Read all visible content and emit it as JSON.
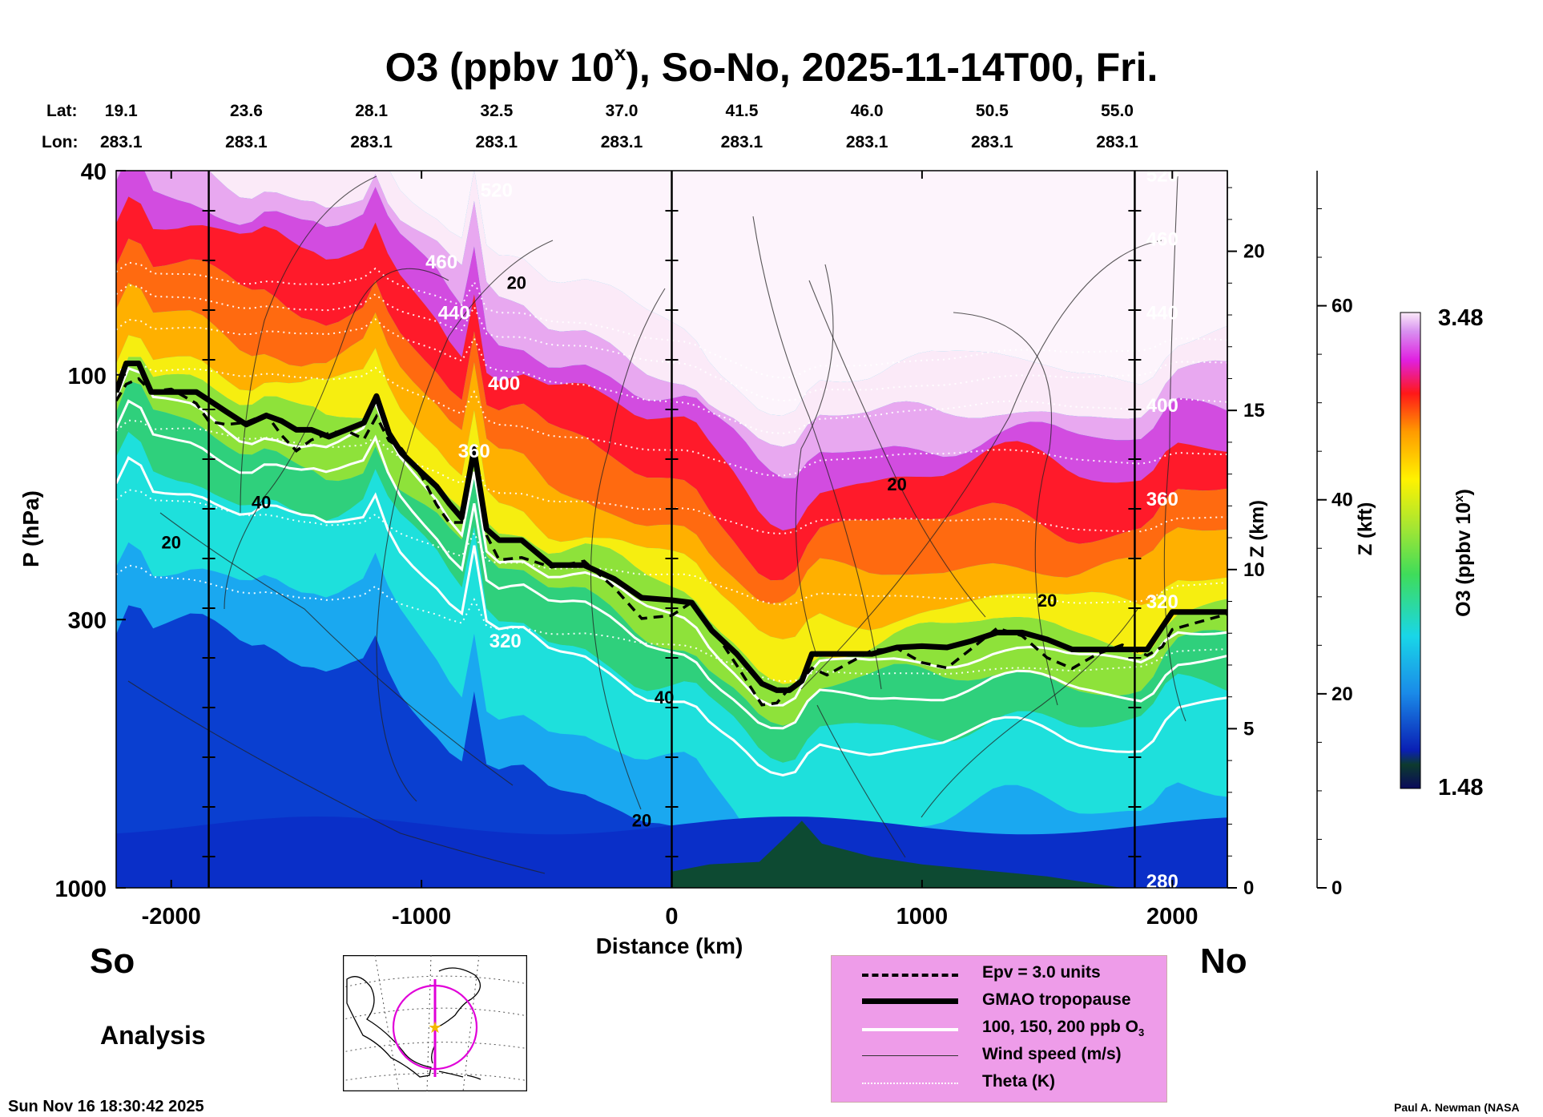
{
  "title": {
    "main": "O3 (ppbv 10",
    "sup": "x",
    "rest": "), So-No, 2025-11-14T00, Fri."
  },
  "header_rows": {
    "lat_label": "Lat:",
    "lon_label": "Lon:"
  },
  "chart_data": {
    "type": "heatmap",
    "title": "O3 (ppbv 10^x), So-No, 2025-11-14T00, Fri.",
    "xlabel": "Distance (km)",
    "ylabel": "P (hPa)",
    "xlim": [
      -2220,
      2220
    ],
    "ylim_pressure": [
      1000,
      40
    ],
    "x_ticks": [
      -2000,
      -1000,
      0,
      1000,
      2000
    ],
    "x_tick_labels": [
      "-2000",
      "-1000",
      "0",
      "1000",
      "2000"
    ],
    "y_ticks": [
      40,
      100,
      300,
      1000
    ],
    "y_tick_labels": [
      "40",
      "100",
      "300",
      "1000"
    ],
    "z_km_axis": {
      "label": "Z (km)",
      "ticks": [
        0,
        5,
        10,
        15,
        20
      ],
      "labels": [
        "0",
        "5",
        "10",
        "15",
        "20"
      ]
    },
    "z_kft_axis": {
      "label": "Z (kft)",
      "ticks": [
        0,
        20,
        40,
        60
      ],
      "labels": [
        "0",
        "20",
        "40",
        "60"
      ]
    },
    "colorbar": {
      "label_main": "O3 (ppbv 10",
      "label_sup": "x",
      "label_rest": ")",
      "min": 1.48,
      "max": 3.48,
      "min_label": "1.48",
      "max_label": "3.48"
    },
    "lat_lon_points": [
      {
        "x": -2200,
        "lat": "19.1",
        "lon": "283.1"
      },
      {
        "x": -1700,
        "lat": "23.6",
        "lon": "283.1"
      },
      {
        "x": -1200,
        "lat": "28.1",
        "lon": "283.1"
      },
      {
        "x": -700,
        "lat": "32.5",
        "lon": "283.1"
      },
      {
        "x": -200,
        "lat": "37.0",
        "lon": "283.1"
      },
      {
        "x": 280,
        "lat": "41.5",
        "lon": "283.1"
      },
      {
        "x": 780,
        "lat": "46.0",
        "lon": "283.1"
      },
      {
        "x": 1280,
        "lat": "50.5",
        "lon": "283.1"
      },
      {
        "x": 1780,
        "lat": "55.0",
        "lon": "283.1"
      }
    ],
    "vertical_markers_km": [
      -1850,
      0,
      1850
    ],
    "tropopause_hpa": {
      "x": [
        -2220,
        -2180,
        -2130,
        -2080,
        -2000,
        -1900,
        -1850,
        -1780,
        -1700,
        -1620,
        -1560,
        -1500,
        -1440,
        -1370,
        -1300,
        -1230,
        -1180,
        -1130,
        -1080,
        -1000,
        -940,
        -890,
        -840,
        -790,
        -740,
        -690,
        -600,
        -480,
        -350,
        -230,
        -120,
        0,
        80,
        160,
        260,
        360,
        420,
        470,
        520,
        560,
        620,
        700,
        800,
        900,
        1000,
        1100,
        1200,
        1300,
        1400,
        1500,
        1600,
        1700,
        1800,
        1900,
        1960,
        2000,
        2220
      ],
      "p": [
        108,
        95,
        95,
        108,
        108,
        108,
        112,
        118,
        125,
        120,
        123,
        128,
        128,
        132,
        128,
        124,
        110,
        130,
        142,
        155,
        165,
        178,
        190,
        140,
        200,
        210,
        210,
        235,
        235,
        250,
        272,
        275,
        278,
        315,
        350,
        400,
        412,
        412,
        395,
        350,
        350,
        350,
        350,
        340,
        338,
        340,
        330,
        318,
        318,
        328,
        343,
        343,
        343,
        343,
        310,
        290,
        290
      ]
    },
    "contour_labels": {
      "theta": [
        "520",
        "460",
        "440",
        "400",
        "360",
        "320",
        "280",
        "440",
        "400",
        "360",
        "320",
        "460",
        "520"
      ],
      "wind": [
        "20",
        "40",
        "20",
        "20",
        "40",
        "20",
        "20"
      ]
    },
    "legend": [
      {
        "key": "epv",
        "label": "Epv = 3.0 units"
      },
      {
        "key": "tropopause",
        "label": "GMAO tropopause"
      },
      {
        "key": "o3",
        "label": "100, 150, 200 ppb O"
      },
      {
        "key": "wind",
        "label": "Wind speed (m/s)"
      },
      {
        "key": "theta",
        "label": "Theta (K)"
      }
    ]
  },
  "legend_o3_sub": "3",
  "direction": {
    "left": "So",
    "right": "No"
  },
  "analysis_label": "Analysis",
  "timestamp": "Sun Nov 16 18:30:42 2025",
  "credit": "Paul A. Newman (NASA"
}
